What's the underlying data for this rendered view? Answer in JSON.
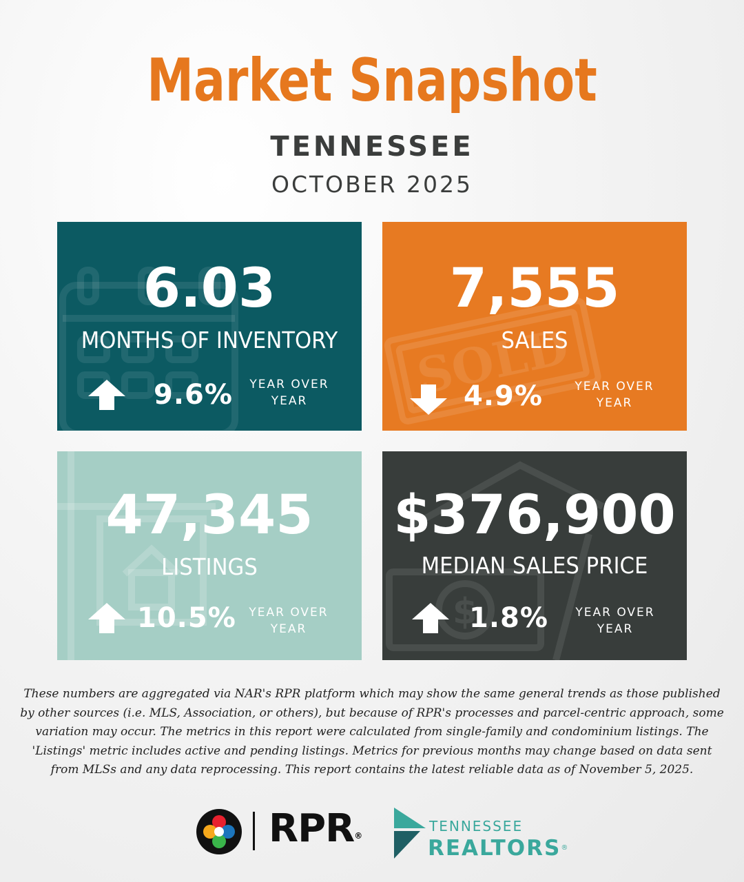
{
  "header": {
    "title": "Market Snapshot",
    "region": "TENNESSEE",
    "period": "OCTOBER 2025"
  },
  "metrics": [
    {
      "value": "6.03",
      "label": "MONTHS OF INVENTORY",
      "change": "9.6%",
      "direction": "up",
      "comparison": "YEAR OVER YEAR",
      "background_color": "#0c5a62",
      "icon": "calendar-icon"
    },
    {
      "value": "7,555",
      "label": "SALES",
      "change": "4.9%",
      "direction": "down",
      "comparison": "YEAR OVER YEAR",
      "background_color": "#e77a22",
      "icon": "sold-stamp-icon"
    },
    {
      "value": "47,345",
      "label": "LISTINGS",
      "change": "10.5%",
      "direction": "up",
      "comparison": "YEAR OVER YEAR",
      "background_color": "#a5cec5",
      "icon": "for-sale-sign-icon"
    },
    {
      "value": "$376,900",
      "label": "MEDIAN SALES PRICE",
      "change": "1.8%",
      "direction": "up",
      "comparison": "YEAR OVER YEAR",
      "background_color": "#383d3b",
      "icon": "money-house-icon"
    }
  ],
  "disclaimer": "These numbers are aggregated via NAR's RPR platform which may show the same general trends as those published by other sources (i.e. MLS, Association, or others), but because of RPR's processes and parcel-centric approach, some variation may occur. The metrics in this report were calculated from single-family and condominium listings. The 'Listings' metric includes active and pending listings. Metrics for previous months may change based on data sent from MLSs and any data reprocessing. This report contains the latest reliable data as of November 5, 2025.",
  "logos": {
    "rpr": "RPR",
    "tn_realtors_top": "TENNESSEE",
    "tn_realtors_bottom": "REALTORS",
    "accent_color": "#3aa89c"
  }
}
